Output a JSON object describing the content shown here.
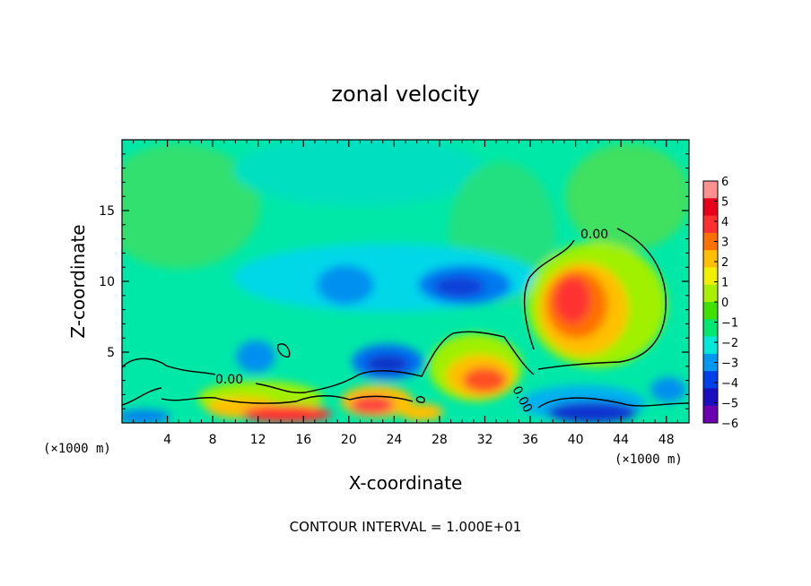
{
  "chart_data": {
    "type": "heatmap",
    "title": "zonal velocity",
    "xlabel": "X-coordinate",
    "ylabel": "Z-coordinate",
    "x_unit": "(×1000 m)",
    "y_unit": "(×1000 m)",
    "xlim": [
      0,
      50
    ],
    "ylim": [
      0,
      20
    ],
    "x_ticks": [
      4,
      8,
      12,
      16,
      20,
      24,
      28,
      32,
      36,
      40,
      44,
      48
    ],
    "y_ticks": [
      5,
      10,
      15
    ],
    "colorbar": {
      "ticks": [
        6,
        5,
        4,
        3,
        2,
        1,
        0,
        -1,
        -2,
        -3,
        -4,
        -5,
        -6
      ],
      "labels": [
        "6",
        "5",
        "4",
        "3",
        "2",
        "1",
        "0",
        "−1",
        "−2",
        "−3",
        "−4",
        "−5",
        "−6"
      ],
      "range": [
        -6,
        6
      ]
    },
    "contour_label": "0.00",
    "footer": "CONTOUR INTERVAL = 1.000E+01",
    "features": [
      {
        "kind": "positive-max",
        "x": 40.5,
        "z": 8.5,
        "value": 4.5
      },
      {
        "kind": "positive-max",
        "x": 31.5,
        "z": 3.0,
        "value": 4.0
      },
      {
        "kind": "negative-min",
        "x": 24.0,
        "z": 4.2,
        "value": -4.5
      },
      {
        "kind": "negative-min",
        "x": 29.5,
        "z": 9.5,
        "value": -3.5
      },
      {
        "kind": "negative-min",
        "x": 19.5,
        "z": 9.6,
        "value": -3.0
      }
    ]
  },
  "colors": {
    "background": "#00e8a8",
    "palette": [
      "#ff9090",
      "#e8001a",
      "#ff3030",
      "#ff7000",
      "#ffc000",
      "#f0f000",
      "#a8f000",
      "#40e000",
      "#00e870",
      "#00e8d8",
      "#0098f0",
      "#0040e8",
      "#1a10c0",
      "#6a00b0"
    ]
  }
}
